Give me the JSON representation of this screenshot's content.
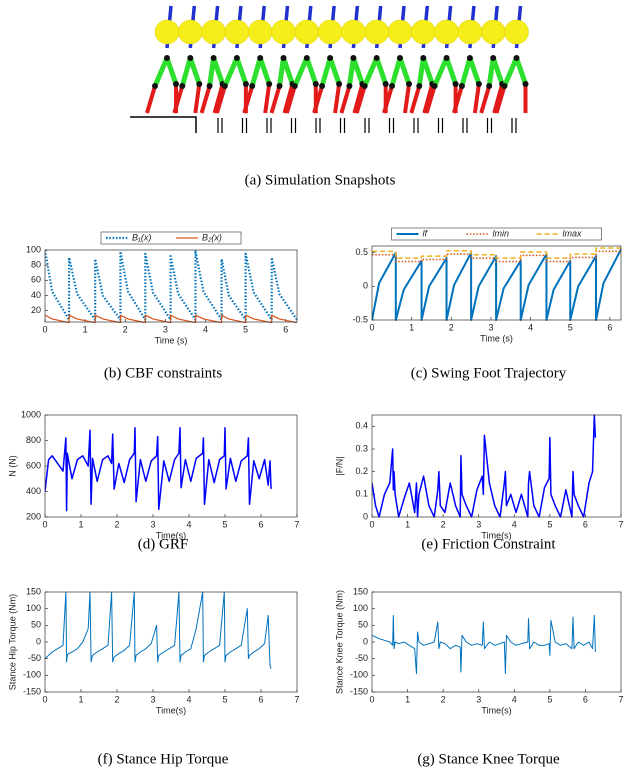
{
  "figure_a": {
    "caption": "(a) Simulation Snapshots"
  },
  "chart_data": [
    {
      "type": "line",
      "caption": "(b) CBF constraints",
      "xlabel": "Time (s)",
      "legend": "top",
      "xlim": [
        0,
        6.28
      ],
      "ylim": [
        5,
        100
      ],
      "xticks": [
        0,
        1,
        2,
        3,
        4,
        5,
        6
      ],
      "yticks": [
        20,
        40,
        60,
        80,
        100
      ],
      "x": [
        0,
        0.18,
        0.6,
        0.6,
        0.8,
        1.25,
        1.25,
        1.44,
        1.88,
        1.88,
        2.07,
        2.5,
        2.5,
        2.69,
        3.13,
        3.13,
        3.32,
        3.75,
        3.75,
        3.95,
        4.4,
        4.4,
        4.58,
        5.0,
        5.0,
        5.2,
        5.65,
        5.65,
        5.84,
        6.28
      ],
      "series": [
        {
          "name": "B₁(x)",
          "color": "#0072bd",
          "dash": "dotted",
          "width": 2.2,
          "values": [
            100,
            45,
            8,
            90,
            42,
            8,
            88,
            40,
            8,
            98,
            45,
            8,
            95,
            44,
            8,
            92,
            42,
            8,
            98,
            45,
            8,
            88,
            40,
            8,
            95,
            44,
            8,
            90,
            42,
            8
          ]
        },
        {
          "name": "B₂(x)",
          "color": "#d95319",
          "dash": "solid",
          "width": 1.2,
          "values": [
            14,
            9,
            4,
            14,
            9,
            4,
            14,
            9,
            4,
            14,
            9,
            4,
            14,
            9,
            4,
            14,
            9,
            4,
            14,
            9,
            4,
            14,
            9,
            4,
            14,
            9,
            4,
            14,
            9,
            4
          ]
        }
      ]
    },
    {
      "type": "line",
      "caption": "(c) Swing Foot Trajectory",
      "xlabel": "Time (s)",
      "legend": "top",
      "xlim": [
        0,
        6.28
      ],
      "ylim": [
        -0.5,
        0.6
      ],
      "xticks": [
        0,
        1,
        2,
        3,
        4,
        5,
        6
      ],
      "yticks": [
        -0.5,
        0,
        0.5
      ],
      "x": [
        0,
        0.18,
        0.6,
        0.6,
        0.8,
        1.25,
        1.25,
        1.44,
        1.88,
        1.88,
        2.07,
        2.5,
        2.5,
        2.69,
        3.13,
        3.13,
        3.32,
        3.75,
        3.75,
        3.95,
        4.4,
        4.4,
        4.58,
        5.0,
        5.0,
        5.2,
        5.65,
        5.65,
        5.84,
        6.28
      ],
      "series": [
        {
          "name": "lf",
          "color": "#0072bd",
          "dash": "solid",
          "width": 2,
          "values": [
            -0.5,
            0.05,
            0.5,
            -0.5,
            -0.05,
            0.38,
            -0.5,
            0.0,
            0.42,
            -0.5,
            0.02,
            0.5,
            -0.5,
            0.0,
            0.45,
            -0.5,
            -0.03,
            0.38,
            -0.5,
            0.02,
            0.48,
            -0.5,
            -0.05,
            0.38,
            -0.5,
            0.0,
            0.45,
            -0.5,
            0.05,
            0.55
          ]
        },
        {
          "name": "lmin",
          "color": "#d95319",
          "dash": "dotted",
          "width": 1.5,
          "values": [
            0.47,
            0.47,
            0.47,
            0.37,
            0.37,
            0.37,
            0.4,
            0.4,
            0.4,
            0.48,
            0.48,
            0.48,
            0.42,
            0.42,
            0.42,
            0.37,
            0.37,
            0.37,
            0.46,
            0.46,
            0.46,
            0.37,
            0.37,
            0.37,
            0.43,
            0.43,
            0.43,
            0.52,
            0.52,
            0.52
          ]
        },
        {
          "name": "lmax",
          "color": "#edb120",
          "dash": "dashed",
          "width": 1.5,
          "values": [
            0.52,
            0.52,
            0.52,
            0.42,
            0.42,
            0.42,
            0.45,
            0.45,
            0.45,
            0.53,
            0.53,
            0.53,
            0.47,
            0.47,
            0.47,
            0.42,
            0.42,
            0.42,
            0.51,
            0.51,
            0.51,
            0.42,
            0.42,
            0.42,
            0.48,
            0.48,
            0.48,
            0.57,
            0.57,
            0.57
          ]
        }
      ]
    },
    {
      "type": "line",
      "caption": "(d) GRF",
      "xlabel": "Time(s)",
      "ylabel": "N (N)",
      "xlim": [
        0,
        7
      ],
      "ylim": [
        200,
        1000
      ],
      "xticks": [
        0,
        1,
        2,
        3,
        4,
        5,
        6,
        7
      ],
      "yticks": [
        200,
        400,
        600,
        800,
        1000
      ],
      "x": [
        0,
        0.1,
        0.2,
        0.35,
        0.5,
        0.58,
        0.6,
        0.62,
        0.65,
        0.75,
        0.9,
        1.05,
        1.2,
        1.25,
        1.28,
        1.32,
        1.45,
        1.6,
        1.75,
        1.85,
        1.88,
        1.92,
        2.05,
        2.2,
        2.35,
        2.48,
        2.5,
        2.53,
        2.65,
        2.8,
        2.95,
        3.1,
        3.13,
        3.16,
        3.3,
        3.45,
        3.6,
        3.72,
        3.75,
        3.78,
        3.9,
        4.05,
        4.2,
        4.38,
        4.4,
        4.43,
        4.55,
        4.7,
        4.85,
        4.98,
        5.0,
        5.03,
        5.15,
        5.3,
        5.45,
        5.62,
        5.65,
        5.68,
        5.8,
        5.95,
        6.1,
        6.2,
        6.25,
        6.28
      ],
      "series": [
        {
          "color": "#0000ff",
          "dash": "solid",
          "width": 1.5,
          "values": [
            400,
            650,
            680,
            620,
            560,
            820,
            250,
            700,
            650,
            500,
            650,
            680,
            600,
            880,
            300,
            660,
            480,
            650,
            680,
            620,
            850,
            420,
            620,
            470,
            650,
            700,
            900,
            320,
            650,
            480,
            640,
            680,
            830,
            260,
            640,
            480,
            650,
            700,
            900,
            430,
            650,
            480,
            660,
            700,
            820,
            300,
            650,
            470,
            650,
            680,
            900,
            420,
            660,
            480,
            640,
            680,
            820,
            300,
            640,
            500,
            650,
            450,
            640,
            420
          ]
        }
      ]
    },
    {
      "type": "line",
      "caption": "(e) Friction Constraint",
      "xlabel": "Time(s)",
      "ylabel": "|F/N|",
      "xlim": [
        0,
        7
      ],
      "ylim": [
        0,
        0.45
      ],
      "xticks": [
        0,
        1,
        2,
        3,
        4,
        5,
        6,
        7
      ],
      "yticks": [
        0,
        0.1,
        0.2,
        0.3,
        0.4
      ],
      "x": [
        0,
        0.1,
        0.2,
        0.35,
        0.5,
        0.58,
        0.6,
        0.62,
        0.65,
        0.75,
        0.9,
        1.05,
        1.2,
        1.25,
        1.28,
        1.32,
        1.45,
        1.6,
        1.75,
        1.85,
        1.88,
        1.92,
        2.05,
        2.2,
        2.35,
        2.48,
        2.5,
        2.53,
        2.65,
        2.8,
        2.95,
        3.1,
        3.13,
        3.16,
        3.3,
        3.45,
        3.6,
        3.72,
        3.75,
        3.78,
        3.9,
        4.05,
        4.2,
        4.38,
        4.4,
        4.43,
        4.55,
        4.7,
        4.85,
        4.98,
        5.0,
        5.03,
        5.15,
        5.3,
        5.45,
        5.62,
        5.65,
        5.68,
        5.8,
        5.95,
        6.1,
        6.2,
        6.25,
        6.28
      ],
      "series": [
        {
          "color": "#0000ff",
          "dash": "solid",
          "width": 1.5,
          "values": [
            0.15,
            0.05,
            0.0,
            0.1,
            0.15,
            0.3,
            0.12,
            0.2,
            0.1,
            0.0,
            0.08,
            0.15,
            0.02,
            0.15,
            0.0,
            0.1,
            0.18,
            0.05,
            0.0,
            0.12,
            0.2,
            0.05,
            0.02,
            0.15,
            0.05,
            0.0,
            0.27,
            0.1,
            0.05,
            0.0,
            0.12,
            0.18,
            0.1,
            0.36,
            0.15,
            0.05,
            0.0,
            0.15,
            0.2,
            0.05,
            0.1,
            0.02,
            0.1,
            0.0,
            0.15,
            0.2,
            0.05,
            0.0,
            0.13,
            0.17,
            0.35,
            0.1,
            0.05,
            0.0,
            0.12,
            0.0,
            0.2,
            0.1,
            0.05,
            0.0,
            0.15,
            0.2,
            0.45,
            0.35
          ]
        }
      ]
    },
    {
      "type": "line",
      "caption": "(f) Stance Hip Torque",
      "xlabel": "Time(s)",
      "ylabel": "Stance Hip Torque (Nm)",
      "xlim": [
        0,
        7
      ],
      "ylim": [
        -150,
        150
      ],
      "xticks": [
        0,
        1,
        2,
        3,
        4,
        5,
        6,
        7
      ],
      "yticks": [
        -150,
        -100,
        -50,
        0,
        50,
        100,
        150
      ],
      "x": [
        0,
        0.1,
        0.2,
        0.35,
        0.5,
        0.58,
        0.6,
        0.62,
        0.65,
        0.75,
        0.9,
        1.05,
        1.2,
        1.25,
        1.28,
        1.32,
        1.45,
        1.6,
        1.75,
        1.85,
        1.88,
        1.92,
        2.05,
        2.2,
        2.35,
        2.48,
        2.5,
        2.53,
        2.65,
        2.8,
        2.95,
        3.1,
        3.13,
        3.16,
        3.3,
        3.45,
        3.6,
        3.72,
        3.75,
        3.78,
        3.9,
        4.05,
        4.2,
        4.38,
        4.4,
        4.43,
        4.55,
        4.7,
        4.85,
        4.98,
        5.0,
        5.03,
        5.15,
        5.3,
        5.45,
        5.62,
        5.65,
        5.68,
        5.8,
        5.95,
        6.1,
        6.2,
        6.25,
        6.28
      ],
      "series": [
        {
          "color": "#0072bd",
          "dash": "solid",
          "width": 1,
          "values": [
            -50,
            -40,
            -30,
            -20,
            -10,
            150,
            -60,
            -40,
            -35,
            -30,
            -20,
            0,
            40,
            150,
            -60,
            -40,
            -30,
            -20,
            -10,
            150,
            -60,
            -45,
            -35,
            -25,
            -10,
            150,
            -60,
            -40,
            -30,
            -20,
            -5,
            50,
            -60,
            -40,
            -30,
            -20,
            -10,
            150,
            -60,
            -40,
            -30,
            -20,
            40,
            150,
            -60,
            -40,
            -30,
            -20,
            -10,
            150,
            -60,
            -40,
            -30,
            -20,
            -10,
            100,
            -50,
            -40,
            -30,
            -20,
            -5,
            80,
            -70,
            -80
          ]
        }
      ]
    },
    {
      "type": "line",
      "caption": "(g) Stance Knee Torque",
      "xlabel": "Time(s)",
      "ylabel": "Stance Knee Torque (Nm)",
      "xlim": [
        0,
        7
      ],
      "ylim": [
        -150,
        150
      ],
      "xticks": [
        0,
        1,
        2,
        3,
        4,
        5,
        6,
        7
      ],
      "yticks": [
        -150,
        -100,
        -50,
        0,
        50,
        100,
        150
      ],
      "x": [
        0,
        0.1,
        0.2,
        0.35,
        0.5,
        0.58,
        0.6,
        0.62,
        0.65,
        0.75,
        0.9,
        1.05,
        1.2,
        1.25,
        1.28,
        1.32,
        1.45,
        1.6,
        1.75,
        1.85,
        1.88,
        1.92,
        2.05,
        2.2,
        2.35,
        2.48,
        2.5,
        2.53,
        2.65,
        2.8,
        2.95,
        3.1,
        3.13,
        3.16,
        3.3,
        3.45,
        3.6,
        3.72,
        3.75,
        3.78,
        3.9,
        4.05,
        4.2,
        4.38,
        4.4,
        4.43,
        4.55,
        4.7,
        4.85,
        4.98,
        5.0,
        5.03,
        5.15,
        5.3,
        5.45,
        5.62,
        5.65,
        5.68,
        5.8,
        5.95,
        6.1,
        6.2,
        6.25,
        6.28
      ],
      "series": [
        {
          "color": "#0072bd",
          "dash": "solid",
          "width": 1,
          "values": [
            20,
            15,
            10,
            5,
            0,
            -10,
            80,
            -20,
            0,
            -5,
            0,
            -10,
            -20,
            -95,
            30,
            0,
            -10,
            -5,
            0,
            60,
            -20,
            0,
            -5,
            -20,
            -10,
            -15,
            -90,
            20,
            0,
            -10,
            -5,
            -10,
            60,
            -20,
            0,
            -10,
            -5,
            0,
            -95,
            20,
            0,
            -10,
            -5,
            0,
            70,
            -20,
            0,
            -10,
            -10,
            -5,
            -40,
            65,
            0,
            -10,
            -5,
            -20,
            75,
            -20,
            0,
            -10,
            0,
            -20,
            80,
            -30
          ]
        }
      ]
    }
  ]
}
